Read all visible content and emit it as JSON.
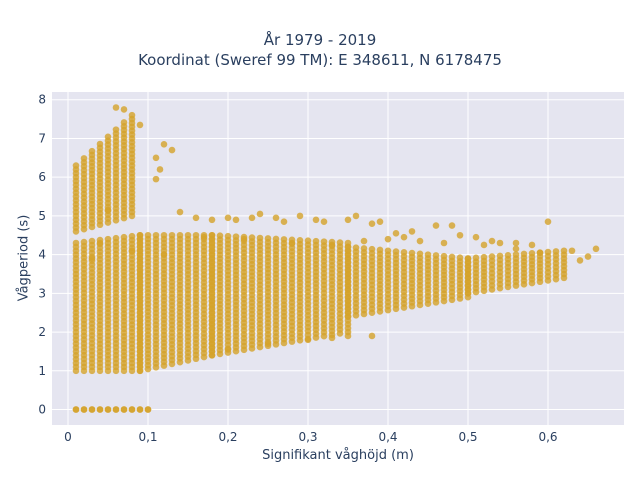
{
  "chart_data": {
    "type": "scatter",
    "title_line1": "År 1979 - 2019",
    "title_line2": "Koordinat (Sweref 99 TM): E 348611, N 6178475",
    "xlabel": "Signifikant våghöjd (m)",
    "ylabel": "Vågperiod (s)",
    "xlim": [
      -0.02,
      0.695
    ],
    "ylim": [
      -0.4,
      8.2
    ],
    "x_ticks": [
      "0",
      "0,1",
      "0,2",
      "0,3",
      "0,4",
      "0,5",
      "0,6"
    ],
    "x_tick_values": [
      0,
      0.1,
      0.2,
      0.3,
      0.4,
      0.5,
      0.6
    ],
    "y_ticks": [
      "0",
      "1",
      "2",
      "3",
      "4",
      "5",
      "6",
      "7",
      "8"
    ],
    "y_tick_values": [
      0,
      1,
      2,
      3,
      4,
      5,
      6,
      7,
      8
    ],
    "grid": true,
    "marker_color": "#d4a32a",
    "background": "#e5e5f0",
    "series": [
      {
        "bands": [
          {
            "x": [
              0.01,
              0.09
            ],
            "y_low": [
              1.0,
              1.0
            ],
            "y_high": [
              4.3,
              4.5
            ]
          },
          {
            "x": [
              0.09,
              0.18
            ],
            "y_low": [
              1.0,
              1.4
            ],
            "y_high": [
              4.5,
              4.5
            ]
          },
          {
            "x": [
              0.18,
              0.35
            ],
            "y_low": [
              1.4,
              2.0
            ],
            "y_high": [
              4.5,
              4.3
            ]
          },
          {
            "x": [
              0.35,
              0.5
            ],
            "y_low": [
              2.4,
              2.9
            ],
            "y_high": [
              4.2,
              3.9
            ]
          },
          {
            "x": [
              0.5,
              0.62
            ],
            "y_low": [
              3.0,
              3.4
            ],
            "y_high": [
              3.9,
              4.1
            ]
          },
          {
            "x": [
              0.01,
              0.08
            ],
            "y_low": [
              4.6,
              5.0
            ],
            "y_high": [
              6.3,
              7.6
            ]
          },
          {
            "x": [
              0.01,
              0.1
            ],
            "y_low": [
              0,
              0
            ],
            "y_high": [
              0,
              0
            ]
          }
        ],
        "outliers": [
          [
            0.06,
            7.8
          ],
          [
            0.07,
            7.75
          ],
          [
            0.09,
            7.35
          ],
          [
            0.12,
            6.85
          ],
          [
            0.13,
            6.7
          ],
          [
            0.11,
            6.5
          ],
          [
            0.115,
            6.2
          ],
          [
            0.11,
            5.95
          ],
          [
            0.14,
            5.1
          ],
          [
            0.16,
            4.95
          ],
          [
            0.18,
            4.9
          ],
          [
            0.2,
            4.95
          ],
          [
            0.21,
            4.9
          ],
          [
            0.23,
            4.95
          ],
          [
            0.24,
            5.05
          ],
          [
            0.26,
            4.95
          ],
          [
            0.27,
            4.85
          ],
          [
            0.29,
            5.0
          ],
          [
            0.31,
            4.9
          ],
          [
            0.32,
            4.85
          ],
          [
            0.35,
            4.9
          ],
          [
            0.36,
            5.0
          ],
          [
            0.38,
            4.8
          ],
          [
            0.39,
            4.85
          ],
          [
            0.41,
            4.55
          ],
          [
            0.42,
            4.45
          ],
          [
            0.43,
            4.6
          ],
          [
            0.46,
            4.75
          ],
          [
            0.48,
            4.75
          ],
          [
            0.49,
            4.5
          ],
          [
            0.51,
            4.45
          ],
          [
            0.53,
            4.35
          ],
          [
            0.54,
            4.3
          ],
          [
            0.56,
            4.3
          ],
          [
            0.58,
            4.25
          ],
          [
            0.6,
            4.85
          ],
          [
            0.63,
            4.1
          ],
          [
            0.65,
            3.95
          ],
          [
            0.66,
            4.15
          ],
          [
            0.64,
            3.85
          ],
          [
            0.2,
            1.55
          ],
          [
            0.25,
            1.7
          ],
          [
            0.3,
            1.8
          ],
          [
            0.33,
            1.85
          ],
          [
            0.35,
            1.9
          ],
          [
            0.38,
            1.9
          ],
          [
            0.08,
            4.1
          ],
          [
            0.04,
            4.3
          ],
          [
            0.03,
            3.9
          ],
          [
            0.05,
            5.15
          ],
          [
            0.12,
            4.0
          ],
          [
            0.17,
            4.45
          ],
          [
            0.22,
            4.4
          ],
          [
            0.28,
            4.3
          ],
          [
            0.33,
            4.25
          ],
          [
            0.37,
            4.35
          ],
          [
            0.4,
            4.4
          ],
          [
            0.44,
            4.35
          ],
          [
            0.47,
            4.3
          ],
          [
            0.52,
            4.25
          ],
          [
            0.56,
            4.15
          ],
          [
            0.59,
            4.05
          ]
        ]
      }
    ]
  }
}
